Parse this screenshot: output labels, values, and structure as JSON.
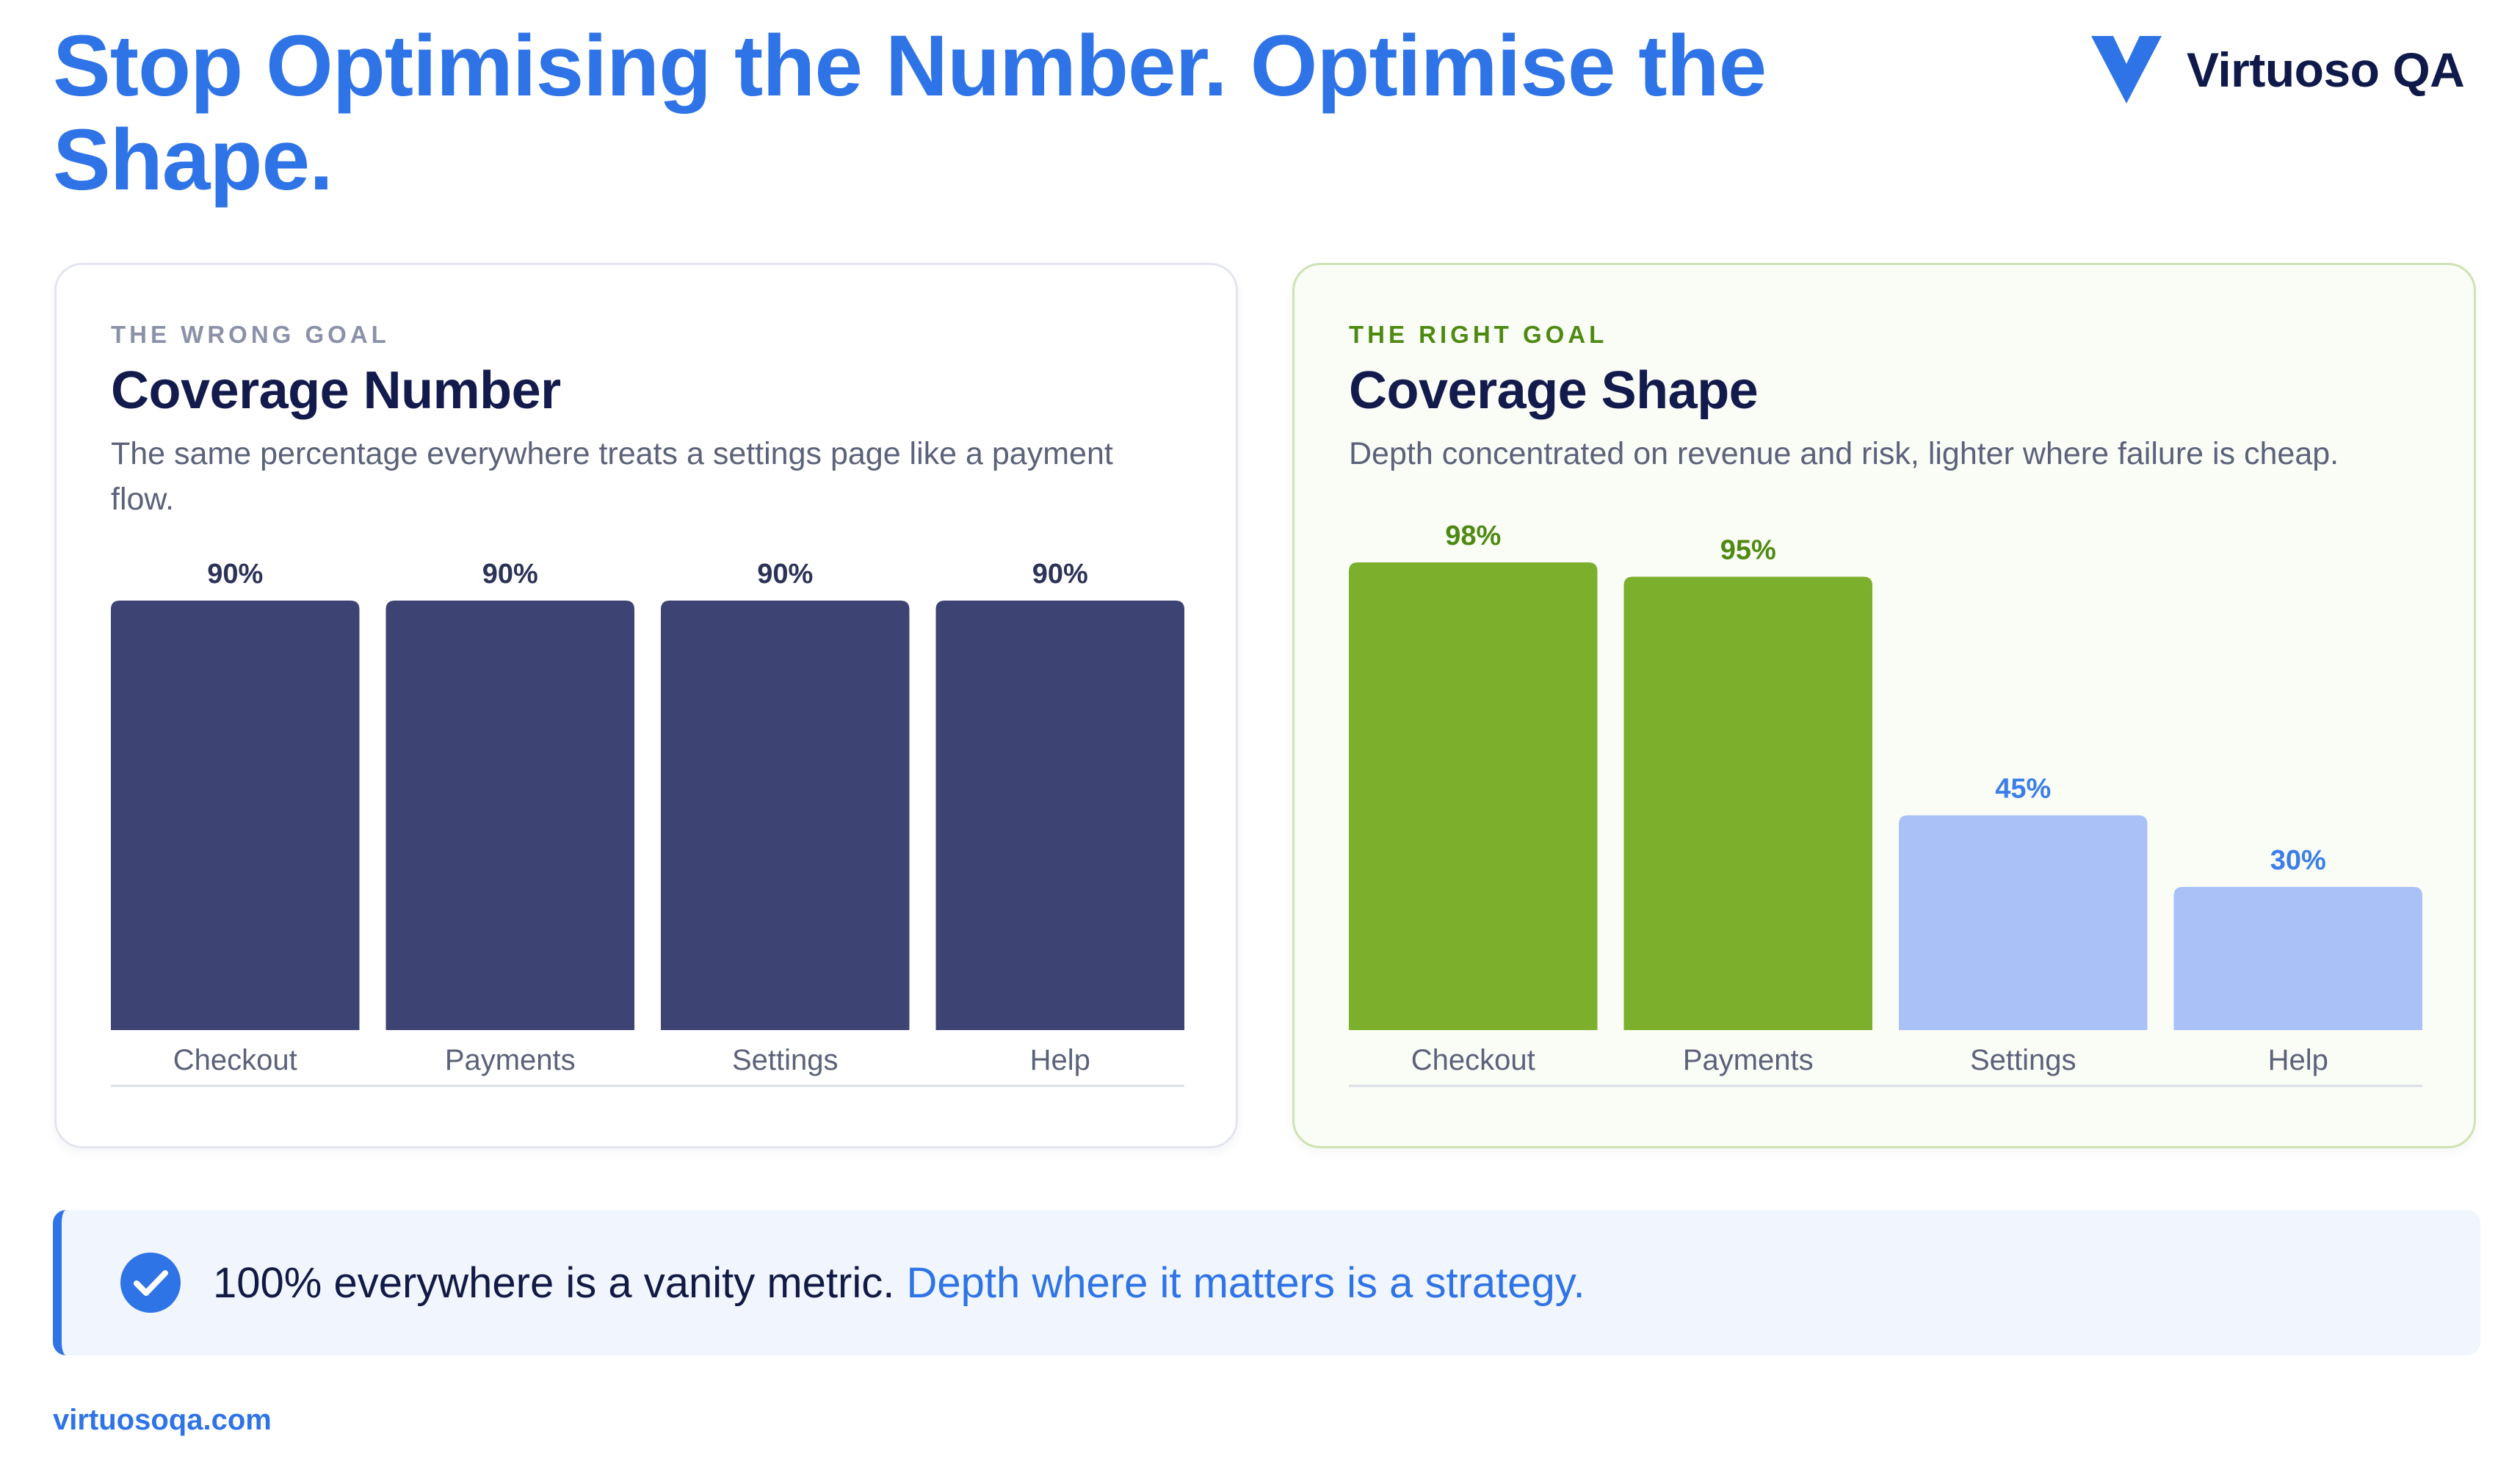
{
  "title": "Stop Optimising the Number. Optimise the Shape.",
  "brand": {
    "name": "Virtuoso QA",
    "logo_icon": "v-logo-icon",
    "color": "#2f74e6"
  },
  "colors": {
    "uniform_bar": "#3d4473",
    "priority_bar": "#7cb02c",
    "light_bar": "#aac1f7",
    "uniform_label": "#2c3358",
    "priority_label": "#4e8a12",
    "light_label": "#3b7ee8"
  },
  "panels": [
    {
      "eyebrow": "THE WRONG GOAL",
      "title": "Coverage Number",
      "description": "The same percentage everywhere treats a settings page like a payment flow."
    },
    {
      "eyebrow": "THE RIGHT GOAL",
      "title": "Coverage Shape",
      "description": "Depth concentrated on revenue and risk, lighter where failure is cheap."
    }
  ],
  "chart_data": [
    {
      "type": "bar",
      "title": "Coverage Number",
      "categories": [
        "Checkout",
        "Payments",
        "Settings",
        "Help"
      ],
      "values": [
        90,
        90,
        90,
        90
      ],
      "value_labels": [
        "90%",
        "90%",
        "90%",
        "90%"
      ],
      "bar_styles": [
        "uniform",
        "uniform",
        "uniform",
        "uniform"
      ],
      "unit": "%",
      "ylim": [
        0,
        100
      ],
      "grid": false
    },
    {
      "type": "bar",
      "title": "Coverage Shape",
      "categories": [
        "Checkout",
        "Payments",
        "Settings",
        "Help"
      ],
      "values": [
        98,
        95,
        45,
        30
      ],
      "value_labels": [
        "98%",
        "95%",
        "45%",
        "30%"
      ],
      "bar_styles": [
        "priority",
        "priority",
        "light",
        "light"
      ],
      "unit": "%",
      "ylim": [
        0,
        100
      ],
      "grid": false
    }
  ],
  "callout": {
    "icon": "check-circle-icon",
    "main": "100% everywhere is a vanity metric.",
    "accent": "Depth where it matters is a strategy."
  },
  "footer": "virtuosoqa.com"
}
